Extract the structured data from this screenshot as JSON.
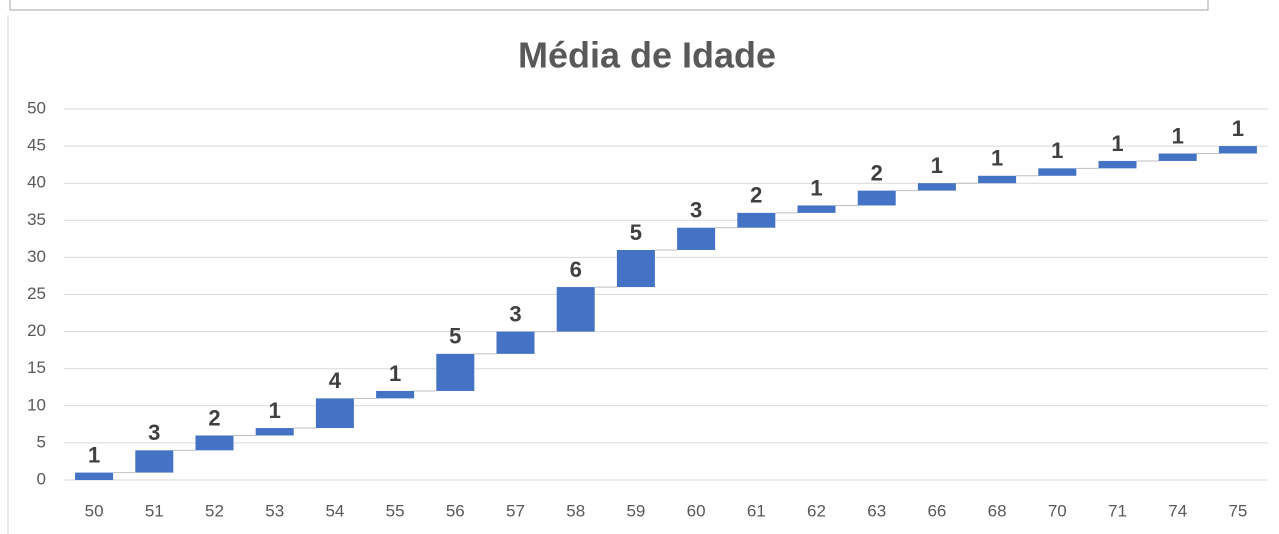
{
  "chart_data": {
    "type": "waterfall",
    "title": "Média de Idade",
    "categories": [
      "50",
      "51",
      "52",
      "53",
      "54",
      "55",
      "56",
      "57",
      "58",
      "59",
      "60",
      "61",
      "62",
      "63",
      "66",
      "68",
      "70",
      "71",
      "74",
      "75"
    ],
    "values": [
      1,
      3,
      2,
      1,
      4,
      1,
      5,
      3,
      6,
      5,
      3,
      2,
      1,
      2,
      1,
      1,
      1,
      1,
      1,
      1
    ],
    "color": "#4472c4",
    "ylim": [
      0,
      50
    ],
    "yticks": [
      0,
      5,
      10,
      15,
      20,
      25,
      30,
      35,
      40,
      45,
      50
    ],
    "grid": true
  }
}
